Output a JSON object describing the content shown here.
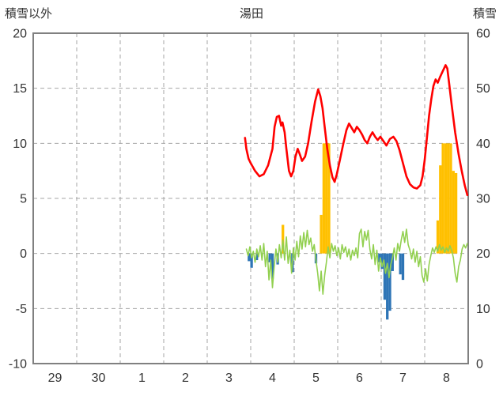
{
  "chart_data": {
    "type": "line",
    "title": "湯田",
    "left_axis": {
      "label": "積雪以外",
      "min": -10,
      "max": 20,
      "ticks": [
        20,
        15,
        10,
        5,
        0,
        -5,
        -10
      ]
    },
    "right_axis": {
      "label": "積雪",
      "min": 0,
      "max": 60,
      "ticks": [
        60,
        50,
        40,
        30,
        20,
        10,
        0
      ]
    },
    "x_axis": {
      "labels": [
        "29",
        "30",
        "1",
        "2",
        "3",
        "4",
        "5",
        "6",
        "7",
        "8"
      ],
      "slots": 10
    },
    "colors": {
      "red": "#ff0000",
      "green": "#92d050",
      "orange": "#ffc000",
      "blue": "#2e75b6",
      "grid": "#a6a6a6",
      "border": "#808080",
      "text": "#333333",
      "background": "#ffffff"
    },
    "series": [
      {
        "name": "orange_bars",
        "type": "bar",
        "axis": "left",
        "color": "#ffc000",
        "bar_width": 0.06,
        "points": [
          [
            5.74,
            2.6
          ],
          [
            6.62,
            3.5
          ],
          [
            6.68,
            10
          ],
          [
            6.74,
            10
          ],
          [
            6.8,
            10
          ],
          [
            9.3,
            3
          ],
          [
            9.36,
            8
          ],
          [
            9.42,
            10
          ],
          [
            9.48,
            10
          ],
          [
            9.54,
            10
          ],
          [
            9.6,
            10
          ],
          [
            9.66,
            7.5
          ],
          [
            9.72,
            7.3
          ]
        ]
      },
      {
        "name": "blue_bars",
        "type": "bar",
        "axis": "left",
        "color": "#2e75b6",
        "bar_width": 0.06,
        "points": [
          [
            4.96,
            -0.7
          ],
          [
            5.02,
            -1.3
          ],
          [
            5.14,
            -0.6
          ],
          [
            5.44,
            -0.8
          ],
          [
            5.5,
            -2.3
          ],
          [
            5.62,
            -1.0
          ],
          [
            5.96,
            -1.7
          ],
          [
            6.5,
            -0.9
          ],
          [
            7.96,
            -0.8
          ],
          [
            8.02,
            -1.4
          ],
          [
            8.08,
            -4.2
          ],
          [
            8.14,
            -6.0
          ],
          [
            8.2,
            -5.2
          ],
          [
            8.26,
            -1.6
          ],
          [
            8.44,
            -1.9
          ],
          [
            8.5,
            -2.4
          ]
        ]
      },
      {
        "name": "green_line",
        "type": "line",
        "axis": "left",
        "color": "#92d050",
        "width": 1.6,
        "points": [
          [
            4.9,
            0.4
          ],
          [
            4.94,
            -0.2
          ],
          [
            4.98,
            0.6
          ],
          [
            5.02,
            -0.4
          ],
          [
            5.06,
            0.2
          ],
          [
            5.1,
            -0.8
          ],
          [
            5.14,
            0.4
          ],
          [
            5.18,
            -0.3
          ],
          [
            5.22,
            0.7
          ],
          [
            5.26,
            -0.6
          ],
          [
            5.3,
            0.9
          ],
          [
            5.34,
            -1.2
          ],
          [
            5.38,
            0.2
          ],
          [
            5.42,
            -2.4
          ],
          [
            5.46,
            -0.6
          ],
          [
            5.5,
            -3.1
          ],
          [
            5.54,
            -1.2
          ],
          [
            5.58,
            0.4
          ],
          [
            5.62,
            -0.8
          ],
          [
            5.66,
            0.8
          ],
          [
            5.7,
            -0.4
          ],
          [
            5.74,
            1.2
          ],
          [
            5.78,
            -0.6
          ],
          [
            5.82,
            1.5
          ],
          [
            5.86,
            -0.9
          ],
          [
            5.9,
            0.3
          ],
          [
            5.94,
            -1.8
          ],
          [
            5.98,
            0.5
          ],
          [
            6.02,
            -0.6
          ],
          [
            6.06,
            1.1
          ],
          [
            6.1,
            -0.3
          ],
          [
            6.14,
            1.6
          ],
          [
            6.18,
            0.4
          ],
          [
            6.22,
            1.9
          ],
          [
            6.26,
            0.6
          ],
          [
            6.3,
            2.1
          ],
          [
            6.34,
            0.8
          ],
          [
            6.38,
            1.4
          ],
          [
            6.42,
            0.2
          ],
          [
            6.46,
            0.8
          ],
          [
            6.5,
            -0.6
          ],
          [
            6.54,
            -1.8
          ],
          [
            6.58,
            -3.4
          ],
          [
            6.62,
            -1.6
          ],
          [
            6.66,
            -3.7
          ],
          [
            6.7,
            -2.0
          ],
          [
            6.74,
            -0.8
          ],
          [
            6.78,
            0.6
          ],
          [
            6.82,
            -0.4
          ],
          [
            6.86,
            0.9
          ],
          [
            6.9,
            0.2
          ],
          [
            6.94,
            0.7
          ],
          [
            6.98,
            -0.2
          ],
          [
            7.02,
            0.5
          ],
          [
            7.06,
            -0.5
          ],
          [
            7.1,
            0.8
          ],
          [
            7.14,
            0.1
          ],
          [
            7.18,
            0.6
          ],
          [
            7.22,
            -0.3
          ],
          [
            7.26,
            0.4
          ],
          [
            7.3,
            -0.6
          ],
          [
            7.34,
            0.3
          ],
          [
            7.38,
            -0.2
          ],
          [
            7.42,
            0.5
          ],
          [
            7.46,
            -0.4
          ],
          [
            7.5,
            1.8
          ],
          [
            7.54,
            2.2
          ],
          [
            7.58,
            0.6
          ],
          [
            7.62,
            2.0
          ],
          [
            7.66,
            1.2
          ],
          [
            7.7,
            2.1
          ],
          [
            7.74,
            0.4
          ],
          [
            7.78,
            -0.5
          ],
          [
            7.82,
            0.8
          ],
          [
            7.86,
            -1.0
          ],
          [
            7.9,
            0.3
          ],
          [
            7.94,
            -1.6
          ],
          [
            7.98,
            -0.4
          ],
          [
            8.02,
            -1.2
          ],
          [
            8.06,
            -0.6
          ],
          [
            8.1,
            -1.8
          ],
          [
            8.14,
            -0.9
          ],
          [
            8.18,
            -2.2
          ],
          [
            8.22,
            -1.0
          ],
          [
            8.26,
            -0.4
          ],
          [
            8.3,
            0.5
          ],
          [
            8.34,
            -0.6
          ],
          [
            8.38,
            0.9
          ],
          [
            8.42,
            0.2
          ],
          [
            8.46,
            1.2
          ],
          [
            8.5,
            2.0
          ],
          [
            8.54,
            1.0
          ],
          [
            8.58,
            2.2
          ],
          [
            8.62,
            0.8
          ],
          [
            8.66,
            0.3
          ],
          [
            8.7,
            -0.5
          ],
          [
            8.74,
            0.4
          ],
          [
            8.78,
            -0.8
          ],
          [
            8.82,
            0.2
          ],
          [
            8.86,
            -1.2
          ],
          [
            8.9,
            -0.3
          ],
          [
            8.94,
            -2.0
          ],
          [
            8.98,
            -2.6
          ],
          [
            9.02,
            -1.4
          ],
          [
            9.06,
            -2.5
          ],
          [
            9.1,
            -1.0
          ],
          [
            9.14,
            -0.2
          ],
          [
            9.18,
            0.5
          ],
          [
            9.22,
            0.1
          ],
          [
            9.26,
            0.6
          ],
          [
            9.3,
            0.2
          ],
          [
            9.34,
            0.8
          ],
          [
            9.38,
            0.3
          ],
          [
            9.42,
            0.6
          ],
          [
            9.46,
            0.1
          ],
          [
            9.5,
            0.5
          ],
          [
            9.54,
            0.2
          ],
          [
            9.58,
            0.7
          ],
          [
            9.62,
            0.3
          ],
          [
            9.66,
            -0.4
          ],
          [
            9.7,
            -1.8
          ],
          [
            9.74,
            -2.6
          ],
          [
            9.78,
            -1.2
          ],
          [
            9.82,
            -0.6
          ],
          [
            9.86,
            0.4
          ],
          [
            9.9,
            0.8
          ],
          [
            9.94,
            0.5
          ],
          [
            9.98,
            0.9
          ]
        ]
      },
      {
        "name": "red_line",
        "type": "line",
        "axis": "left",
        "color": "#ff0000",
        "width": 2.6,
        "points": [
          [
            4.87,
            10.5
          ],
          [
            4.9,
            9.5
          ],
          [
            4.95,
            8.6
          ],
          [
            5.0,
            8.2
          ],
          [
            5.1,
            7.5
          ],
          [
            5.2,
            7.0
          ],
          [
            5.3,
            7.2
          ],
          [
            5.4,
            8.0
          ],
          [
            5.5,
            9.5
          ],
          [
            5.55,
            11.5
          ],
          [
            5.6,
            12.4
          ],
          [
            5.65,
            12.5
          ],
          [
            5.7,
            11.6
          ],
          [
            5.73,
            11.9
          ],
          [
            5.78,
            11.0
          ],
          [
            5.82,
            9.5
          ],
          [
            5.88,
            7.5
          ],
          [
            5.93,
            7.0
          ],
          [
            5.98,
            7.5
          ],
          [
            6.03,
            8.8
          ],
          [
            6.08,
            9.5
          ],
          [
            6.13,
            9.0
          ],
          [
            6.18,
            8.4
          ],
          [
            6.25,
            8.8
          ],
          [
            6.32,
            10.0
          ],
          [
            6.4,
            12.0
          ],
          [
            6.48,
            13.8
          ],
          [
            6.55,
            14.9
          ],
          [
            6.6,
            14.3
          ],
          [
            6.65,
            13.2
          ],
          [
            6.7,
            11.5
          ],
          [
            6.76,
            9.5
          ],
          [
            6.82,
            8.0
          ],
          [
            6.88,
            6.9
          ],
          [
            6.93,
            6.5
          ],
          [
            6.98,
            7.2
          ],
          [
            7.05,
            8.5
          ],
          [
            7.12,
            9.8
          ],
          [
            7.2,
            11.2
          ],
          [
            7.26,
            11.8
          ],
          [
            7.32,
            11.4
          ],
          [
            7.38,
            11.0
          ],
          [
            7.44,
            11.5
          ],
          [
            7.5,
            11.2
          ],
          [
            7.56,
            10.8
          ],
          [
            7.62,
            10.3
          ],
          [
            7.68,
            10.0
          ],
          [
            7.74,
            10.6
          ],
          [
            7.8,
            11.0
          ],
          [
            7.86,
            10.6
          ],
          [
            7.92,
            10.3
          ],
          [
            7.98,
            10.6
          ],
          [
            8.05,
            10.2
          ],
          [
            8.12,
            9.8
          ],
          [
            8.2,
            10.4
          ],
          [
            8.28,
            10.6
          ],
          [
            8.35,
            10.2
          ],
          [
            8.42,
            9.4
          ],
          [
            8.5,
            8.2
          ],
          [
            8.58,
            7.0
          ],
          [
            8.66,
            6.3
          ],
          [
            8.74,
            6.0
          ],
          [
            8.82,
            5.9
          ],
          [
            8.9,
            6.2
          ],
          [
            8.95,
            7.0
          ],
          [
            9.0,
            8.5
          ],
          [
            9.05,
            10.5
          ],
          [
            9.1,
            12.5
          ],
          [
            9.15,
            14.0
          ],
          [
            9.2,
            15.2
          ],
          [
            9.25,
            15.8
          ],
          [
            9.3,
            15.5
          ],
          [
            9.35,
            16.0
          ],
          [
            9.42,
            16.6
          ],
          [
            9.48,
            17.1
          ],
          [
            9.52,
            16.8
          ],
          [
            9.56,
            15.5
          ],
          [
            9.62,
            13.5
          ],
          [
            9.7,
            11.0
          ],
          [
            9.78,
            9.0
          ],
          [
            9.85,
            7.5
          ],
          [
            9.92,
            6.2
          ],
          [
            9.98,
            5.3
          ]
        ]
      }
    ]
  }
}
